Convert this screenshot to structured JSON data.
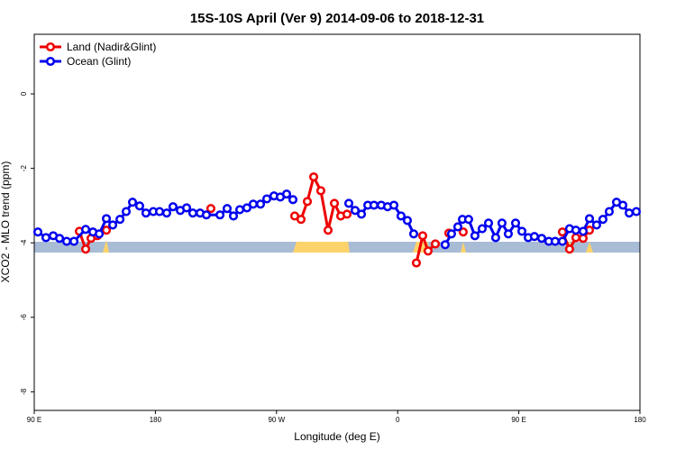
{
  "chart_data": {
    "type": "line",
    "title": "15S-10S April (Ver 9)   2014-09-06 to 2018-12-31",
    "x_label": "Longitude (deg E)",
    "y_label": "XCO2 - MLO trend (ppm)",
    "xlim": [
      90,
      540
    ],
    "xticks": [
      {
        "value": 90,
        "label": "90 E"
      },
      180,
      {
        "value": 270,
        "label": "90 W"
      },
      {
        "value": 360,
        "label": "0"
      },
      {
        "value": 450,
        "label": "90 E"
      },
      {
        "value": 540,
        "label": "180"
      }
    ],
    "ylim": [
      -8.5,
      1.6
    ],
    "yticks": [
      0,
      -2,
      -4,
      -6,
      -8
    ],
    "legend": "top-left",
    "series": [
      {
        "name": "Land (Nadir&Glint)",
        "color": "#ee0000",
        "x": [
          123.5,
          128.2,
          132.2,
          136.9,
          null,
          143.6,
          null,
          221.2,
          null,
          283.5,
          288.2,
          292.9,
          297.6,
          302.9,
          308.3,
          313.0,
          317.7,
          322.4,
          null,
          373.9,
          378.6,
          382.6,
          388.0,
          null,
          398.0,
          null,
          408.7,
          null,
          482.4,
          487.7,
          492.4,
          497.8,
          502.5
        ],
        "values": [
          -3.69,
          -4.17,
          -3.88,
          -3.81,
          null,
          -3.66,
          null,
          -3.08,
          null,
          -3.28,
          -3.37,
          -2.89,
          -2.23,
          -2.6,
          -3.66,
          -2.94,
          -3.28,
          -3.23,
          null,
          -4.54,
          -3.81,
          -4.22,
          -4.03,
          null,
          -3.74,
          null,
          -3.71,
          null,
          -3.71,
          -4.17,
          -3.86,
          -3.88,
          -3.66
        ]
      },
      {
        "name": "Ocean (Glint)",
        "color": "#0000ee",
        "x": [
          92.7,
          98.7,
          104.1,
          108.8,
          114.1,
          119.5,
          128.2,
          133.6,
          138.3,
          143.6,
          148.3,
          153.7,
          158.3,
          163.0,
          168.3,
          173.0,
          178.4,
          183.1,
          188.4,
          193.1,
          198.5,
          203.2,
          207.8,
          213.2,
          217.9,
          228.0,
          233.3,
          238.0,
          242.7,
          248.0,
          252.7,
          258.1,
          262.8,
          268.1,
          272.8,
          277.5,
          282.2,
          null,
          323.7,
          328.4,
          333.1,
          337.8,
          342.4,
          347.8,
          352.5,
          357.2,
          362.5,
          367.2,
          371.9,
          null,
          395.3,
          400.0,
          404.7,
          408.1,
          412.7,
          417.4,
          422.8,
          427.5,
          432.8,
          437.5,
          442.2,
          447.6,
          452.3,
          457.0,
          461.6,
          467.0,
          472.3,
          477.0,
          482.4,
          487.7,
          492.4,
          497.8,
          502.5,
          507.8,
          512.5,
          517.2,
          522.6,
          527.3,
          532.0,
          537.3
        ],
        "values": [
          -3.71,
          -3.86,
          -3.81,
          -3.88,
          -3.96,
          -3.96,
          -3.64,
          -3.71,
          -3.76,
          -3.35,
          -3.52,
          -3.37,
          -3.16,
          -2.91,
          -3.01,
          -3.2,
          -3.16,
          -3.16,
          -3.2,
          -3.03,
          -3.13,
          -3.06,
          -3.2,
          -3.2,
          -3.25,
          -3.25,
          -3.08,
          -3.28,
          -3.11,
          -3.06,
          -2.96,
          -2.96,
          -2.82,
          -2.74,
          -2.77,
          -2.69,
          -2.84,
          null,
          -2.94,
          -3.13,
          -3.23,
          -2.99,
          -2.99,
          -2.99,
          -3.03,
          -2.99,
          -3.28,
          -3.4,
          -3.76,
          null,
          -4.05,
          -3.76,
          -3.57,
          -3.37,
          -3.37,
          -3.81,
          -3.62,
          -3.47,
          -3.86,
          -3.47,
          -3.76,
          -3.47,
          -3.69,
          -3.86,
          -3.83,
          -3.88,
          -3.96,
          -3.96,
          -3.96,
          -3.62,
          -3.66,
          -3.69,
          -3.35,
          -3.52,
          -3.37,
          -3.16,
          -2.91,
          -2.99,
          -3.2,
          -3.16
        ]
      }
    ]
  }
}
